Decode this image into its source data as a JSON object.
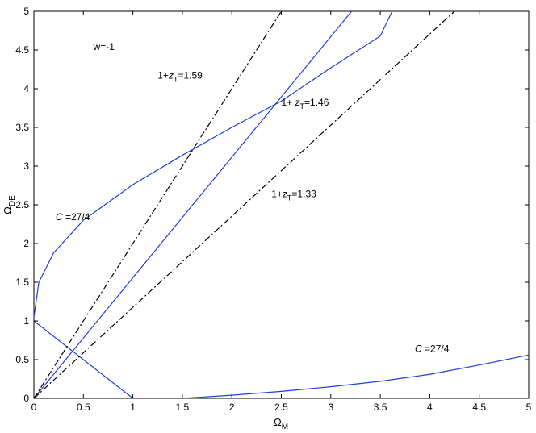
{
  "chart_data": {
    "type": "line",
    "title": "",
    "xlim": [
      0,
      5
    ],
    "ylim": [
      0,
      5
    ],
    "grid": false,
    "x_ticks": [
      "0",
      "0.5",
      "1",
      "1.5",
      "2",
      "2.5",
      "3",
      "3.5",
      "4",
      "4.5",
      "5"
    ],
    "y_ticks": [
      "0",
      "0.5",
      "1",
      "1.5",
      "2",
      "2.5",
      "3",
      "3.5",
      "4",
      "4.5",
      "5"
    ],
    "xlabel": {
      "main": "Ω",
      "sub": "M"
    },
    "ylabel": {
      "main": "Ω",
      "sub": "DE"
    },
    "series": [
      {
        "style": "solid",
        "color": "#1f3fd8",
        "points": [
          [
            0,
            1.05
          ],
          [
            0.05,
            1.5
          ],
          [
            0.2,
            1.88
          ],
          [
            0.5,
            2.3
          ],
          [
            1.0,
            2.76
          ],
          [
            1.5,
            3.14
          ],
          [
            2.0,
            3.5
          ],
          [
            2.5,
            3.84
          ],
          [
            3.0,
            4.27
          ],
          [
            3.5,
            4.68
          ],
          [
            3.62,
            5.0
          ]
        ]
      },
      {
        "style": "solid",
        "color": "#1f3fd8",
        "points": [
          [
            1.0,
            0.0
          ],
          [
            1.5,
            0.0
          ],
          [
            2.0,
            0.04
          ],
          [
            2.5,
            0.09
          ],
          [
            3.0,
            0.15
          ],
          [
            3.5,
            0.22
          ],
          [
            4.0,
            0.31
          ],
          [
            4.5,
            0.43
          ],
          [
            5.0,
            0.56
          ]
        ]
      },
      {
        "style": "solid",
        "color": "#1f3fd8",
        "points": [
          [
            0,
            0
          ],
          [
            3.21,
            5.0
          ]
        ]
      },
      {
        "style": "solid",
        "color": "#1f3fd8",
        "points": [
          [
            0,
            1.0
          ],
          [
            1.0,
            0.0
          ]
        ]
      },
      {
        "style": "dashdot",
        "color": "#000000",
        "points": [
          [
            0,
            0
          ],
          [
            2.5,
            5.0
          ]
        ]
      },
      {
        "style": "dashdot",
        "color": "#000000",
        "points": [
          [
            0,
            0
          ],
          [
            4.25,
            5.0
          ]
        ]
      }
    ],
    "annotations": [
      {
        "text": "w=-1",
        "x": 0.6,
        "y": 4.5
      },
      {
        "pre": "1+",
        "var": "z",
        "sub": "T",
        "post": "=1.59",
        "x": 1.25,
        "y": 4.13
      },
      {
        "pre": "1+ ",
        "var": "z",
        "sub": "T",
        "post": "=1.46",
        "x": 2.5,
        "y": 3.78
      },
      {
        "pre": "1+",
        "var": "z",
        "sub": "T",
        "post": "=1.33",
        "x": 2.4,
        "y": 2.6
      },
      {
        "var": "C",
        "post": " =27/4",
        "x": 0.22,
        "y": 2.3
      },
      {
        "var": "C",
        "post": " =27/4",
        "x": 3.85,
        "y": 0.6
      }
    ]
  }
}
